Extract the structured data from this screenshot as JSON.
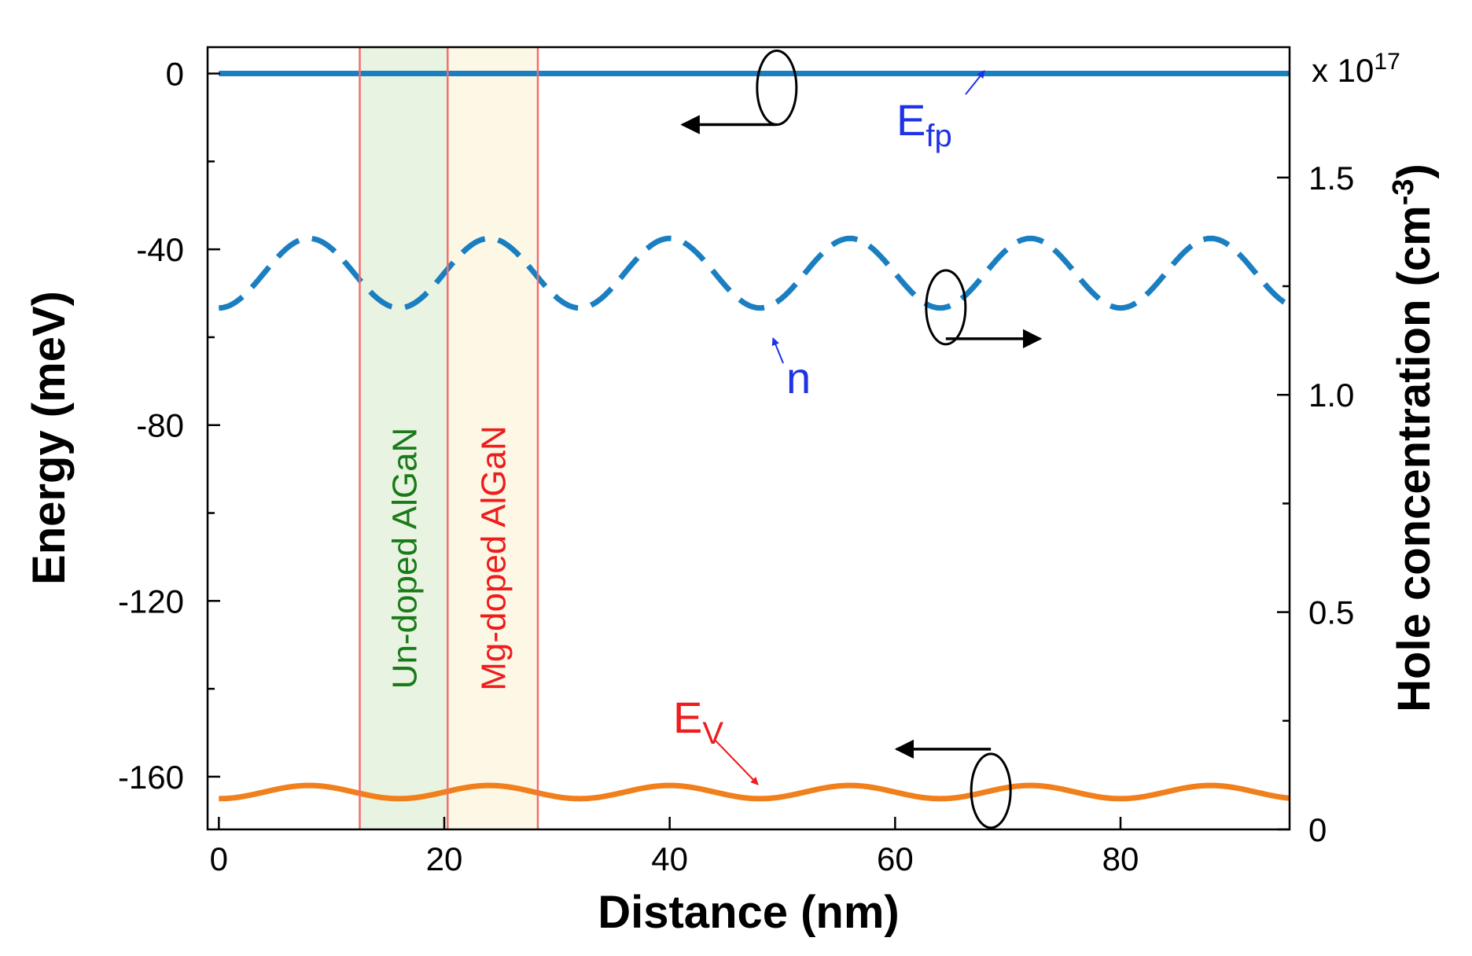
{
  "chart_data": {
    "type": "line",
    "title": "",
    "xlabel": "Distance (nm)",
    "ylabel": "Energy (meV)",
    "y2label_prefix": "Hole concentration (cm",
    "y2label_exp": "-3",
    "y2label_suffix": ")",
    "xlim": [
      -1,
      95
    ],
    "ylim": [
      -172,
      6
    ],
    "y2lim": [
      0,
      1.8
    ],
    "x_ticks": [
      0,
      20,
      40,
      60,
      80
    ],
    "x_tick_labels": [
      "0",
      "20",
      "40",
      "60",
      "80"
    ],
    "y_ticks": [
      0,
      -40,
      -80,
      -120,
      -160
    ],
    "y_tick_labels": [
      "0",
      "-40",
      "-80",
      "-120",
      "-160"
    ],
    "y_minor_ticks": [
      -20,
      -60,
      -100,
      -140
    ],
    "y2_ticks": [
      0,
      0.5,
      1.0,
      1.5
    ],
    "y2_tick_labels": [
      "0",
      "0.5",
      "1.0",
      "1.5"
    ],
    "y2_minor_ticks": [
      0.25,
      0.75,
      1.25
    ],
    "y2_multiplier_base": "x 10",
    "y2_multiplier_exp": "17",
    "series": [
      {
        "name": "Efp",
        "axis": "left",
        "style": "solid",
        "color": "#1a7fc1",
        "x": [
          0,
          95
        ],
        "y": [
          0,
          0
        ]
      },
      {
        "name": "n",
        "axis": "right",
        "style": "dashed",
        "color": "#1a7fc1",
        "period": 16,
        "x": [
          0,
          8,
          16,
          24,
          32,
          40,
          48,
          56,
          64,
          72,
          80,
          88,
          95
        ],
        "y": [
          1.2,
          1.36,
          1.2,
          1.36,
          1.2,
          1.36,
          1.2,
          1.36,
          1.2,
          1.36,
          1.2,
          1.36,
          1.2
        ]
      },
      {
        "name": "Ev",
        "axis": "left",
        "style": "solid",
        "color": "#f07f1c",
        "period": 16,
        "x": [
          0,
          8,
          16,
          24,
          32,
          40,
          48,
          56,
          64,
          72,
          80,
          88,
          95
        ],
        "y": [
          -165,
          -162,
          -165,
          -162,
          -165,
          -162,
          -165,
          -162,
          -165,
          -162,
          -165,
          -162,
          -165
        ]
      }
    ],
    "regions": [
      {
        "label": "Un-doped AlGaN",
        "x_start": 12.5,
        "x_end": 20.3,
        "fill": "#e9f3e1",
        "text_color": "#1a7a1a"
      },
      {
        "label": "Mg-doped AlGaN",
        "x_start": 20.3,
        "x_end": 28.3,
        "fill": "#fdf8e6",
        "text_color": "#ee1c1c"
      }
    ],
    "boundary_line_color": "#f26d6d",
    "annotations": [
      {
        "text": "E",
        "sub": "fp",
        "color": "#1e32e6",
        "points_to_x": 69,
        "points_to_series": "Efp"
      },
      {
        "text": "n",
        "sub": "",
        "color": "#1e32e6",
        "points_to_x": 49,
        "points_to_series": "n"
      },
      {
        "text": "E",
        "sub": "V",
        "color": "#ee1c1c",
        "points_to_x": 48.5,
        "points_to_series": "Ev"
      }
    ],
    "axis_indicators": [
      {
        "series": "Efp",
        "direction": "left"
      },
      {
        "series": "n",
        "direction": "right"
      },
      {
        "series": "Ev",
        "direction": "left"
      }
    ]
  }
}
